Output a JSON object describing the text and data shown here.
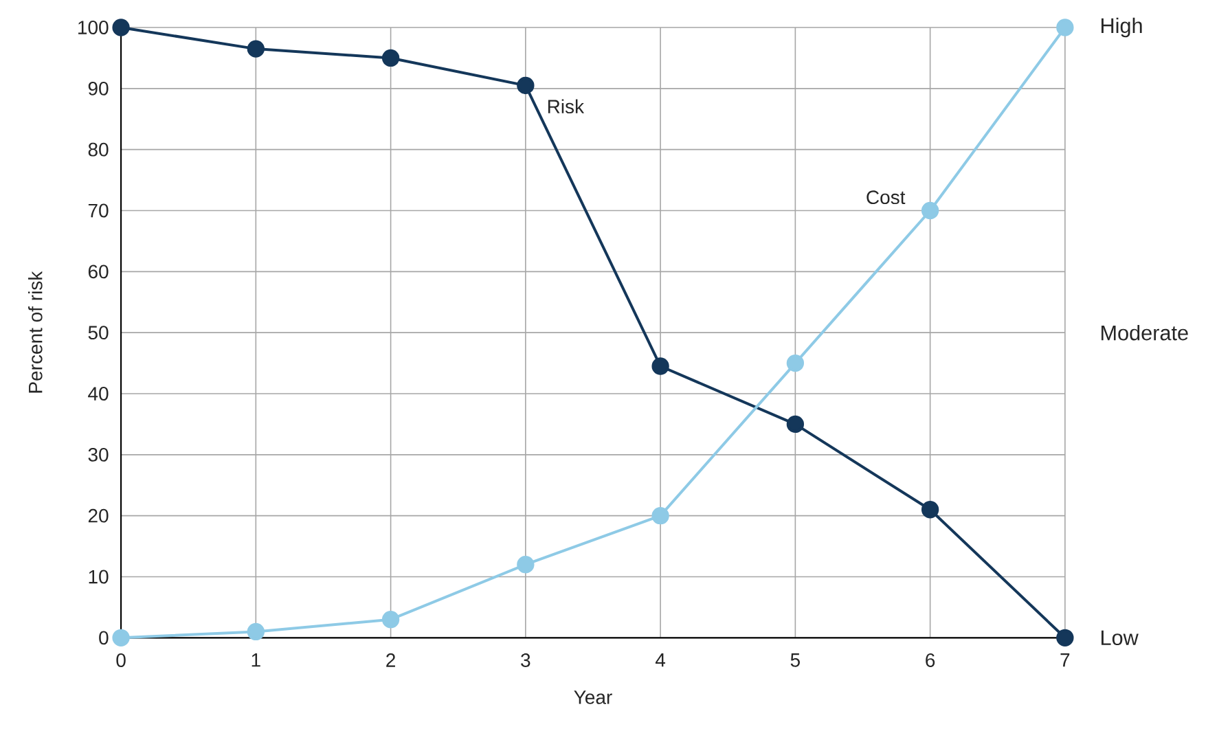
{
  "chart_data": {
    "type": "line",
    "xlabel": "Year",
    "ylabel": "Percent of risk",
    "x": [
      0,
      1,
      2,
      3,
      4,
      5,
      6,
      7
    ],
    "series": [
      {
        "name": "Risk",
        "color": "#14375a",
        "values": [
          100,
          96.5,
          95,
          90.5,
          44.5,
          35,
          21,
          0
        ]
      },
      {
        "name": "Cost",
        "color": "#8ecae6",
        "values": [
          0,
          1,
          3,
          12,
          20,
          45,
          70,
          100
        ]
      }
    ],
    "xlim": [
      0,
      7
    ],
    "xticks": [
      0,
      1,
      2,
      3,
      4,
      5,
      6,
      7
    ],
    "ylim": [
      0,
      100
    ],
    "yticks": [
      0,
      10,
      20,
      30,
      40,
      50,
      60,
      70,
      80,
      90,
      100
    ],
    "annotations": [
      "Low",
      "Moderate",
      "High"
    ],
    "grid": true,
    "marker": "circle",
    "line_style": "solid",
    "legend": false
  }
}
